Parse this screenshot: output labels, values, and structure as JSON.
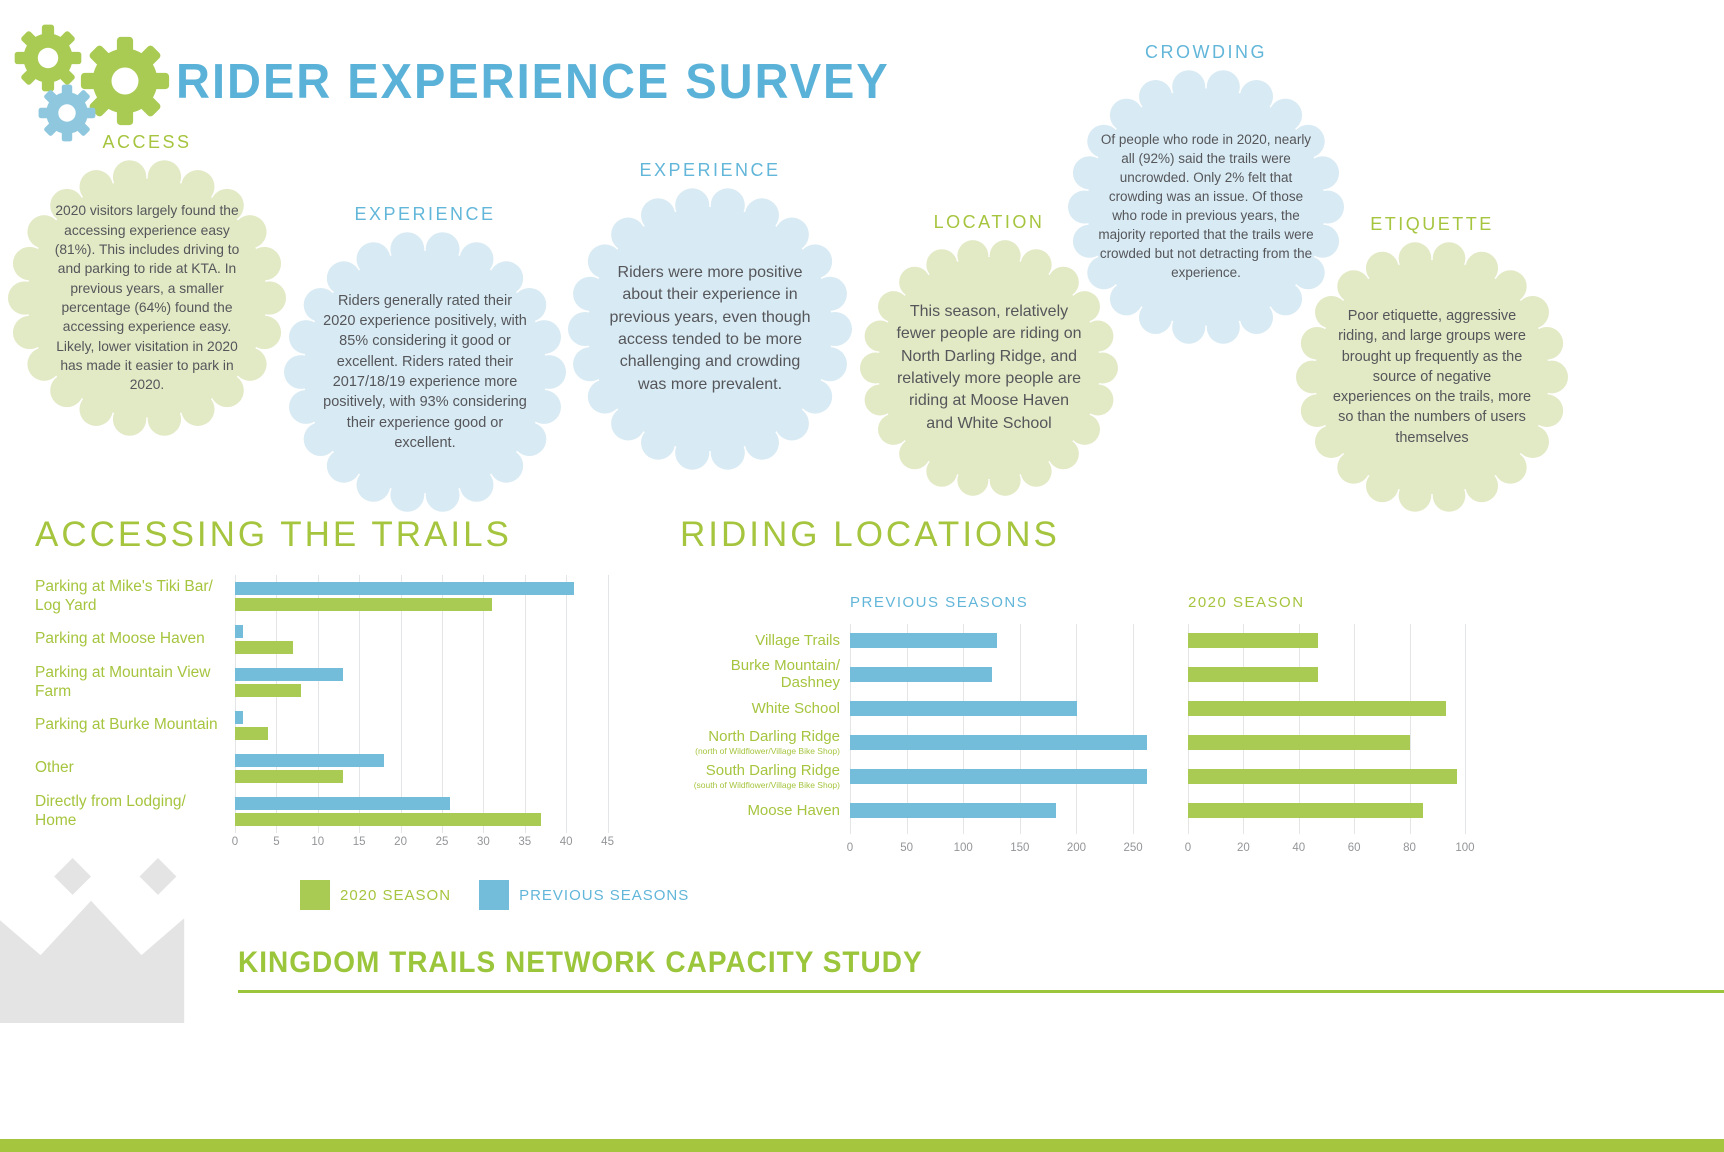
{
  "header": {
    "title": "RIDER EXPERIENCE SURVEY"
  },
  "bubbles": [
    {
      "heading": "ACCESS",
      "tone": "green",
      "body": "2020 visitors largely found the accessing experience easy (81%). This includes driving to and parking to ride at KTA. In previous years, a smaller percentage (64%) found the accessing experience easy. Likely, lower visitation in 2020 has made it easier to park in 2020."
    },
    {
      "heading": "EXPERIENCE",
      "tone": "blue",
      "body": "Riders generally rated their 2020 experience positively, with 85% considering it good or excellent. Riders rated their 2017/18/19 experience more positively, with 93% considering their experience good or excellent."
    },
    {
      "heading": "EXPERIENCE",
      "tone": "blue",
      "body": "Riders were more positive about their experience in previous years, even though access tended to be more challenging and crowding was more prevalent."
    },
    {
      "heading": "LOCATION",
      "tone": "green",
      "body": "This season, relatively fewer people are riding on North Darling Ridge, and relatively more people are riding at Moose Haven and White School"
    },
    {
      "heading": "CROWDING",
      "tone": "blue",
      "body": "Of people who rode in 2020, nearly all (92%) said the trails were uncrowded. Only 2% felt that crowding was an issue. Of those who rode in previous years, the majority reported that the trails were crowded but not detracting from the experience."
    },
    {
      "heading": "ETIQUETTE",
      "tone": "green",
      "body": "Poor etiquette, aggressive riding, and large groups were brought up frequently as the source of negative experiences on the trails, more so than the numbers of users themselves"
    }
  ],
  "footer": {
    "title": "KINGDOM TRAILS NETWORK CAPACITY STUDY"
  },
  "colors": {
    "green": "#a6c53f",
    "blue": "#62b6d9",
    "bar_green": "#a9cb53",
    "bar_blue": "#74bdda",
    "light_green": "#e2e9c5",
    "light_blue": "#d8eaf3",
    "gear_green": "#a9cb53",
    "gear_blue": "#8fc8de",
    "title_blue": "#5bb2d8",
    "crown_gray": "#e4e4e4"
  },
  "chart_data": [
    {
      "type": "bar",
      "orientation": "horizontal",
      "title": "ACCESSING THE TRAILS",
      "categories": [
        "Parking at Mike's Tiki Bar/ Log Yard",
        "Parking at Moose Haven",
        "Parking at Mountain View Farm",
        "Parking at Burke Mountain",
        "Other",
        "Directly from Lodging/ Home"
      ],
      "series": [
        {
          "name": "PREVIOUS SEASONS",
          "color": "#74bdda",
          "values": [
            41,
            1,
            13,
            1,
            18,
            26
          ]
        },
        {
          "name": "2020 SEASON",
          "color": "#a9cb53",
          "values": [
            31,
            7,
            8,
            4,
            13,
            37
          ]
        }
      ],
      "xlim": [
        0,
        45
      ],
      "xticks": [
        0,
        5,
        10,
        15,
        20,
        25,
        30,
        35,
        40,
        45
      ],
      "grid": true,
      "legend_position": "bottom"
    },
    {
      "type": "bar",
      "orientation": "horizontal",
      "title": "RIDING LOCATIONS",
      "categories": [
        "Village Trails",
        "Burke Mountain/ Dashney",
        "White School",
        "North Darling Ridge",
        "South Darling Ridge",
        "Moose Haven"
      ],
      "category_notes": [
        "",
        "",
        "",
        "(north of Wildflower/Village Bike Shop)",
        "(south of Wildflower/Village Bike Shop)",
        ""
      ],
      "panels": [
        {
          "name": "PREVIOUS SEASONS",
          "color": "#74bdda",
          "values": [
            130,
            125,
            200,
            262,
            262,
            182
          ],
          "xlim": [
            0,
            250
          ],
          "xticks": [
            0,
            50,
            100,
            150,
            200,
            250
          ]
        },
        {
          "name": "2020 SEASON",
          "color": "#a9cb53",
          "values": [
            47,
            47,
            93,
            80,
            97,
            85
          ],
          "xlim": [
            0,
            100
          ],
          "xticks": [
            0,
            20,
            40,
            60,
            80,
            100
          ]
        }
      ],
      "grid": true
    }
  ]
}
